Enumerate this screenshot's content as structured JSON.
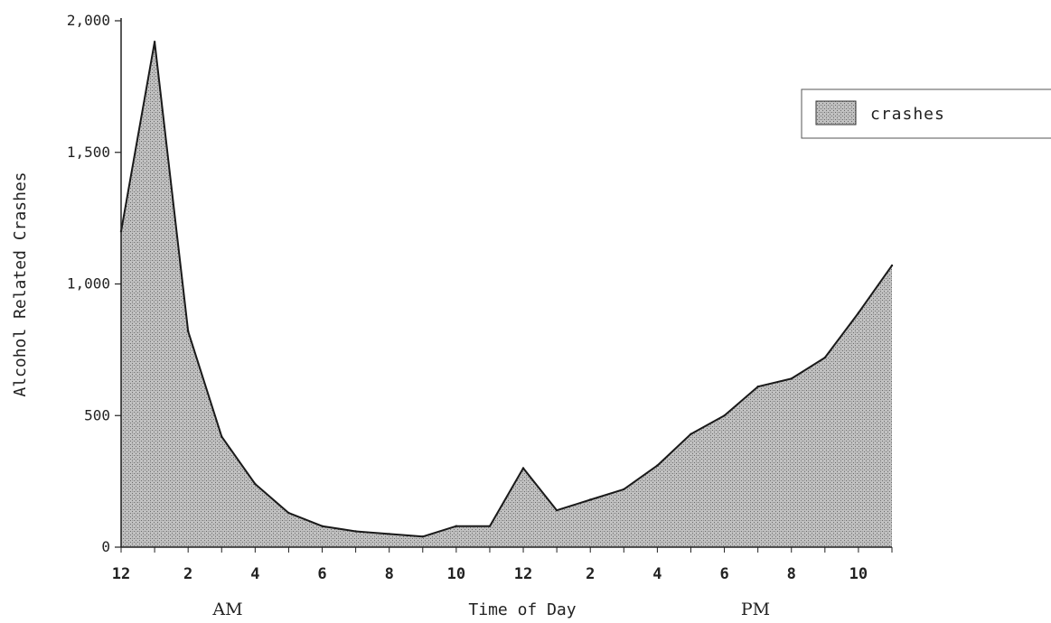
{
  "chart_data": {
    "type": "area",
    "title": "",
    "xlabel": "Time of Day",
    "ylabel": "Alcohol Related Crashes",
    "period_labels": [
      "AM",
      "PM"
    ],
    "x_tick_labels": [
      "12",
      "2",
      "4",
      "6",
      "8",
      "10",
      "12",
      "2",
      "4",
      "6",
      "8",
      "10"
    ],
    "y_tick_labels": [
      "0",
      "500",
      "1,000",
      "1,500",
      "2,000"
    ],
    "ylim": [
      0,
      2000
    ],
    "legend": {
      "position": "top-right",
      "entries": [
        "crashes"
      ]
    },
    "grid": false,
    "series": [
      {
        "name": "crashes",
        "x": [
          0,
          1,
          2,
          3,
          4,
          5,
          6,
          7,
          8,
          9,
          10,
          11,
          12,
          13,
          14,
          15,
          16,
          17,
          18,
          19,
          20,
          21,
          22,
          23
        ],
        "values": [
          1200,
          1920,
          820,
          420,
          240,
          130,
          80,
          60,
          50,
          40,
          80,
          80,
          300,
          140,
          180,
          220,
          310,
          430,
          500,
          610,
          640,
          720,
          890,
          1070
        ]
      }
    ],
    "colors": {
      "fill": "#b4b4b4",
      "line": "#1a1a1a",
      "axis": "#222222"
    }
  }
}
